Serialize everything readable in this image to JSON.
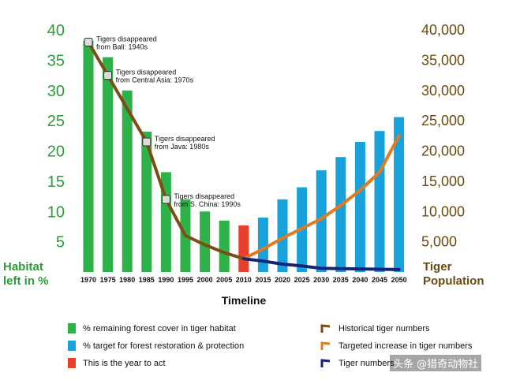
{
  "chart_data": {
    "type": "bar",
    "categories": [
      "1970",
      "1975",
      "1980",
      "1985",
      "1990",
      "1995",
      "2000",
      "2005",
      "2010",
      "2015",
      "2020",
      "2025",
      "2030",
      "2035",
      "2040",
      "2045",
      "2050"
    ],
    "bars_habitat_remaining": {
      "name": "% remaining forest cover in tiger habitat",
      "color": "#2fb14a",
      "x": [
        "1970",
        "1975",
        "1980",
        "1985",
        "1990",
        "1995",
        "2000",
        "2005"
      ],
      "values": [
        38.2,
        35.5,
        30.0,
        23.2,
        16.5,
        12.0,
        10.0,
        8.5
      ]
    },
    "bars_year_to_act": {
      "name": "This is the year to act",
      "color": "#e8402c",
      "x": [
        "2010"
      ],
      "values": [
        7.7
      ]
    },
    "bars_target": {
      "name": "% target for forest restoration & protection",
      "color": "#18a2dc",
      "x": [
        "2015",
        "2020",
        "2025",
        "2030",
        "2035",
        "2040",
        "2045",
        "2050"
      ],
      "values": [
        9.0,
        12.0,
        14.0,
        16.8,
        19.0,
        21.5,
        23.3,
        25.6
      ]
    },
    "series_lines": [
      {
        "name": "Historical tiger numbers",
        "color": "#7a4e14",
        "x": [
          "1970",
          "1975",
          "1980",
          "1985",
          "1990",
          "1995",
          "2000",
          "2005",
          "2010"
        ],
        "values": [
          38000,
          32500,
          27000,
          21500,
          12000,
          6000,
          4500,
          3200,
          2200
        ]
      },
      {
        "name": "Targeted increase in tiger numbers",
        "color": "#e07b24",
        "x": [
          "2010",
          "2015",
          "2020",
          "2025",
          "2030",
          "2035",
          "2040",
          "2045",
          "2050"
        ],
        "values": [
          2200,
          3800,
          5600,
          7200,
          8800,
          11000,
          13500,
          16500,
          22500
        ]
      },
      {
        "name": "Tiger numbers",
        "color": "#16237a",
        "x": [
          "2010",
          "2015",
          "2020",
          "2025",
          "2030",
          "2035",
          "2040",
          "2045",
          "2050"
        ],
        "values": [
          2200,
          1800,
          1300,
          1000,
          600,
          550,
          500,
          450,
          400
        ]
      }
    ],
    "left_axis": {
      "label_line1": "Habitat",
      "label_line2": "left in %",
      "ylim": [
        0,
        40
      ],
      "ticks": [
        "5",
        "10",
        "15",
        "20",
        "25",
        "30",
        "35",
        "40"
      ]
    },
    "right_axis": {
      "label_line1": "Tiger",
      "label_line2": "Population",
      "ylim": [
        0,
        40000
      ],
      "ticks": [
        "5,000",
        "10,000",
        "15,000",
        "20,000",
        "25,000",
        "30,000",
        "35,000",
        "40,000"
      ]
    },
    "xlabel": "Timeline",
    "annotations": [
      {
        "year": "1970",
        "value": 38000,
        "line1": "Tigers disappeared",
        "line2": "from Bali: 1940s"
      },
      {
        "year": "1975",
        "value": 32500,
        "line1": "Tigers disappeared",
        "line2": "from Central Asia: 1970s"
      },
      {
        "year": "1985",
        "value": 21500,
        "line1": "Tigers disappeared",
        "line2": "from Java: 1980s"
      },
      {
        "year": "1990",
        "value": 12000,
        "line1": "Tigers disappeared",
        "line2": "from S. China: 1990s"
      }
    ],
    "grid": false,
    "legend_position": "bottom"
  },
  "legend": {
    "items": [
      {
        "label": "% remaining forest cover in tiger habitat",
        "color": "#2fb14a"
      },
      {
        "label": "% target for forest restoration & protection",
        "color": "#18a2dc"
      },
      {
        "label": "This is the year to act",
        "color": "#e8402c"
      },
      {
        "label": "Historical tiger numbers",
        "color": "#7a4e14"
      },
      {
        "label": "Targeted increase in tiger numbers",
        "color": "#e07b24"
      },
      {
        "label": "Tiger numbers",
        "color": "#16237a"
      }
    ]
  },
  "watermark": "头条 @猎奇动物社"
}
